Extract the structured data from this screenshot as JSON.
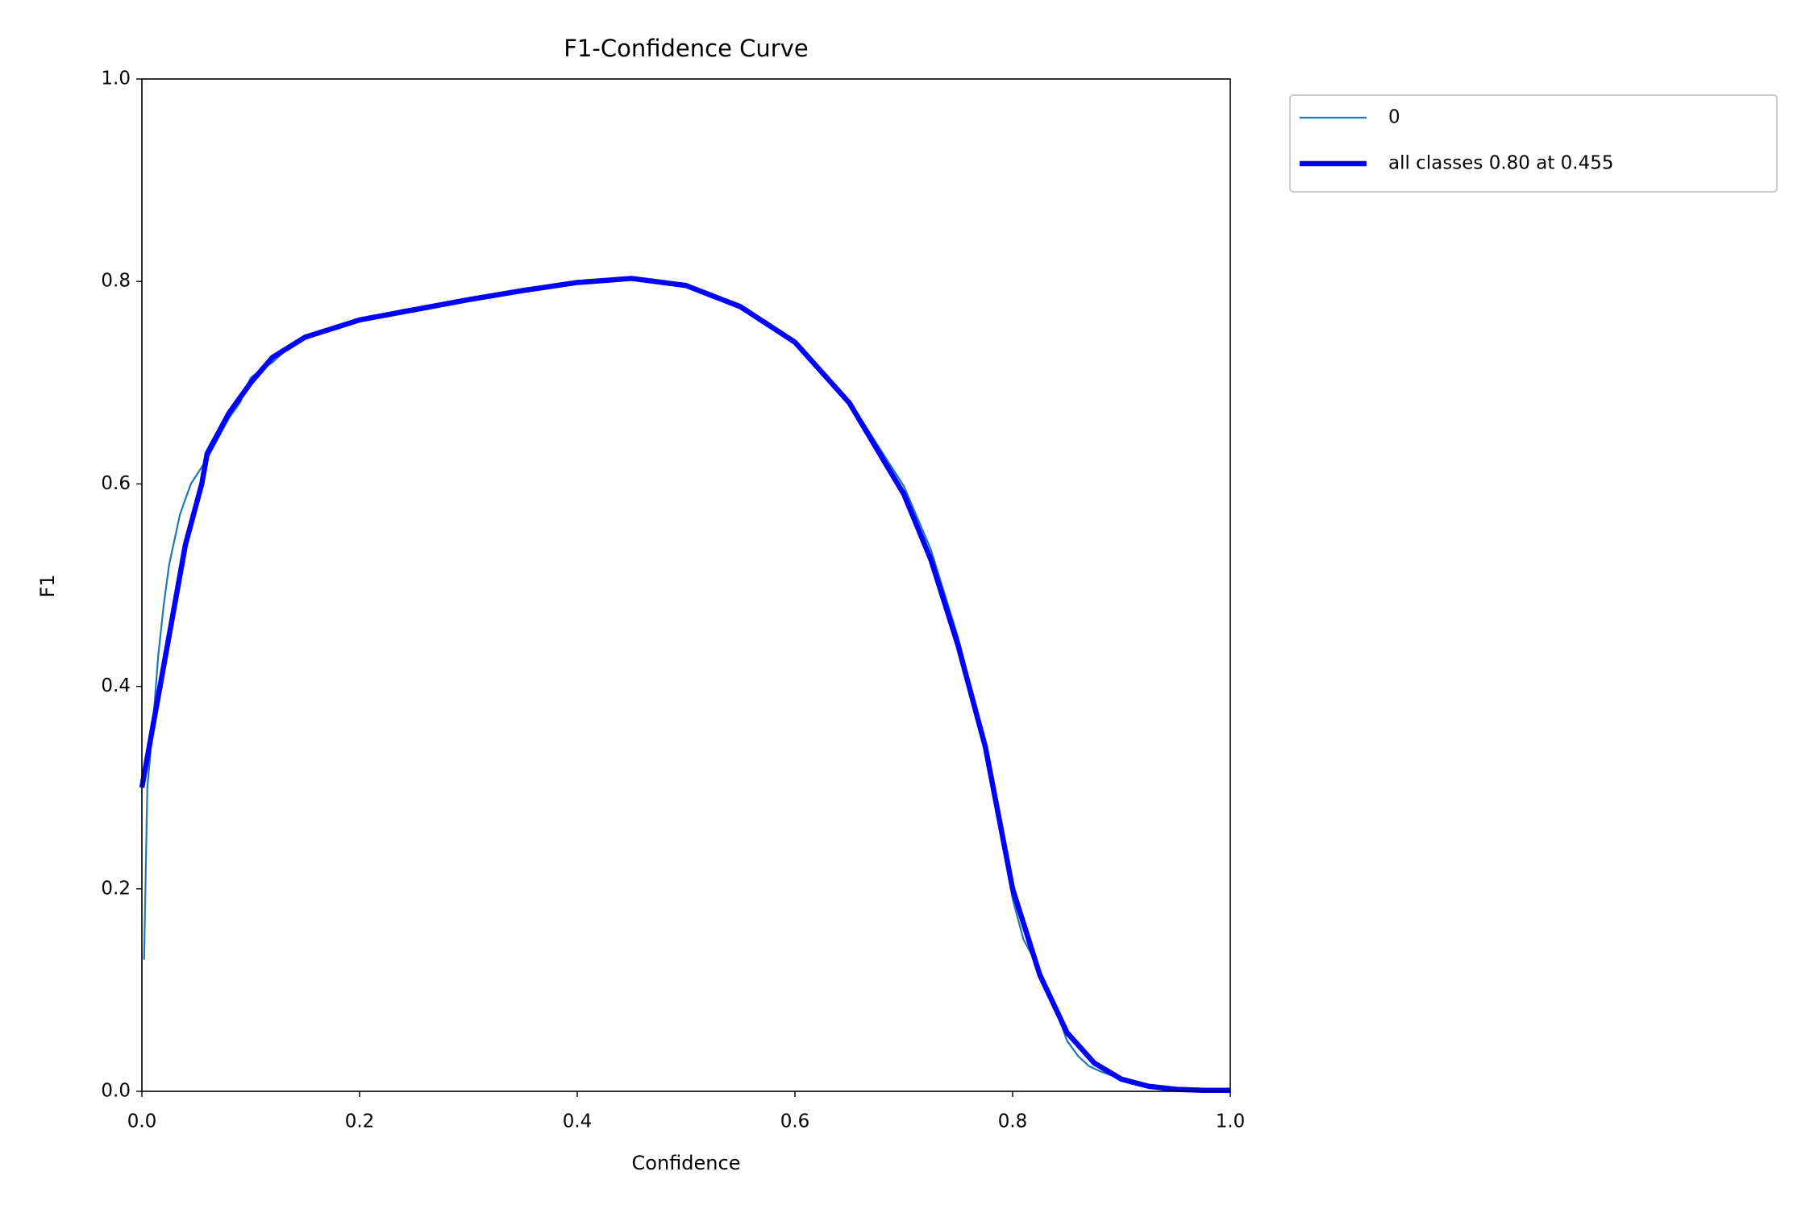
{
  "chart_data": {
    "type": "line",
    "title": "F1-Confidence Curve",
    "x_label": "Confidence",
    "y_label": "F1",
    "xlim": [
      0,
      1
    ],
    "ylim": [
      0,
      1
    ],
    "xticks": [
      {
        "value": 0,
        "label": "0.0"
      },
      0.2,
      0.4,
      0.6,
      0.8,
      {
        "value": 1,
        "label": "1.0"
      }
    ],
    "yticks": [
      {
        "value": 0,
        "label": "0.0"
      },
      0.2,
      0.4,
      0.6,
      0.8,
      {
        "value": 1,
        "label": "1.0"
      }
    ],
    "legend": "upper right outside",
    "series": [
      {
        "name": "0",
        "color": "#1f77b4",
        "x": [
          0.002,
          0.005,
          0.01,
          0.015,
          0.02,
          0.025,
          0.03,
          0.035,
          0.045,
          0.06,
          0.07,
          0.08,
          0.09,
          0.1,
          0.11,
          0.12,
          0.14,
          0.16,
          0.2,
          0.24,
          0.3,
          0.35,
          0.4,
          0.45,
          0.5,
          0.55,
          0.6,
          0.65,
          0.7,
          0.725,
          0.75,
          0.775,
          0.8,
          0.81,
          0.82,
          0.83,
          0.84,
          0.85,
          0.86,
          0.87,
          0.88,
          0.9,
          0.92,
          0.95,
          1.0
        ],
        "values": [
          0.13,
          0.3,
          0.36,
          0.43,
          0.48,
          0.52,
          0.545,
          0.57,
          0.6,
          0.625,
          0.645,
          0.665,
          0.68,
          0.705,
          0.713,
          0.72,
          0.74,
          0.748,
          0.762,
          0.772,
          0.782,
          0.791,
          0.8,
          0.804,
          0.797,
          0.777,
          0.742,
          0.682,
          0.598,
          0.535,
          0.448,
          0.342,
          0.19,
          0.15,
          0.13,
          0.1,
          0.08,
          0.05,
          0.035,
          0.025,
          0.02,
          0.012,
          0.005,
          0.001,
          0
        ]
      },
      {
        "name": "all classes 0.80 at 0.455",
        "color": "#0000ff",
        "x": [
          0,
          0.01,
          0.02,
          0.03,
          0.04,
          0.055,
          0.06,
          0.08,
          0.1,
          0.12,
          0.15,
          0.2,
          0.25,
          0.3,
          0.35,
          0.4,
          0.45,
          0.5,
          0.55,
          0.6,
          0.65,
          0.7,
          0.725,
          0.75,
          0.775,
          0.8,
          0.825,
          0.85,
          0.875,
          0.9,
          0.925,
          0.95,
          0.975,
          1.0
        ],
        "values": [
          0.3,
          0.36,
          0.42,
          0.48,
          0.54,
          0.6,
          0.63,
          0.67,
          0.7,
          0.725,
          0.745,
          0.762,
          0.772,
          0.782,
          0.791,
          0.799,
          0.803,
          0.796,
          0.775,
          0.74,
          0.68,
          0.59,
          0.525,
          0.44,
          0.34,
          0.2,
          0.115,
          0.058,
          0.028,
          0.012,
          0.005,
          0.002,
          0.001,
          0.001
        ]
      }
    ]
  }
}
